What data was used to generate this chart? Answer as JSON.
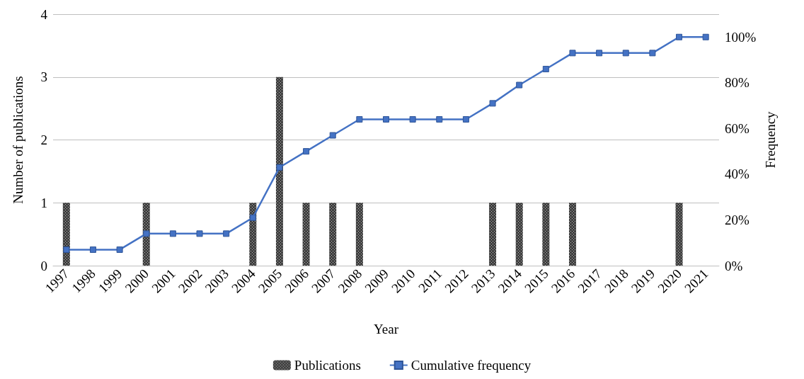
{
  "chart_data": {
    "type": "bar",
    "xlabel": "Year",
    "ylabel": "Number of publications",
    "y2label": "Frequency",
    "categories": [
      "1997",
      "1998",
      "1999",
      "2000",
      "2001",
      "2002",
      "2003",
      "2004",
      "2005",
      "2006",
      "2007",
      "2008",
      "2009",
      "2010",
      "2011",
      "2012",
      "2013",
      "2014",
      "2015",
      "2016",
      "2017",
      "2018",
      "2019",
      "2020",
      "2021"
    ],
    "series": [
      {
        "name": "Publications",
        "color": "#404040",
        "values": [
          1,
          0,
          0,
          1,
          0,
          0,
          0,
          1,
          3,
          1,
          1,
          1,
          0,
          0,
          0,
          0,
          1,
          1,
          1,
          1,
          0,
          0,
          0,
          1,
          0
        ]
      },
      {
        "name": "Cumulative frequency",
        "type": "line",
        "axis": "y2",
        "color": "#4472c4",
        "marker": "square",
        "line_style": "solid",
        "values": [
          7,
          7,
          7,
          14,
          14,
          14,
          14,
          21,
          43,
          50,
          57,
          64,
          64,
          64,
          64,
          64,
          71,
          79,
          86,
          93,
          93,
          93,
          93,
          100,
          100
        ]
      }
    ],
    "ylim": [
      0,
      4
    ],
    "yticks": [
      0,
      1,
      2,
      3,
      4
    ],
    "y2lim": [
      0,
      110
    ],
    "y2ticks": [
      {
        "value": 0,
        "label": "0%"
      },
      {
        "value": 20,
        "label": "20%"
      },
      {
        "value": 40,
        "label": "40%"
      },
      {
        "value": 60,
        "label": "60%"
      },
      {
        "value": 80,
        "label": "80%"
      },
      {
        "value": 100,
        "label": "100%"
      }
    ],
    "grid": "y",
    "legend": "bottom"
  }
}
